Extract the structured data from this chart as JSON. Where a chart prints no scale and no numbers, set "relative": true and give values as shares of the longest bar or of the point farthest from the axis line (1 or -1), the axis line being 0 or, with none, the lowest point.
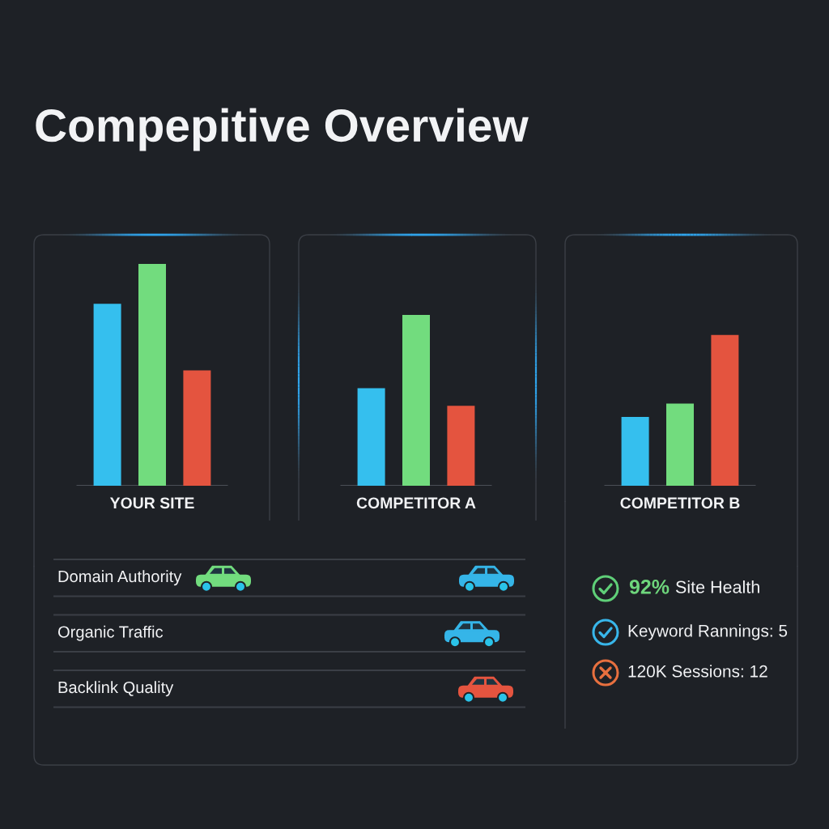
{
  "chart_data": [
    {
      "type": "bar",
      "title": "Compepitive Overview",
      "categories": [
        "YOUR SITE",
        "COMPETITOR A",
        "COMPETITOR B"
      ],
      "series": [
        {
          "color": "#35bfee",
          "values": [
            0.82,
            0.44,
            0.31
          ]
        },
        {
          "color": "#72dc7e",
          "values": [
            1,
            0.77,
            0.37
          ]
        },
        {
          "color": "#e4543f",
          "values": [
            0.52,
            0.36,
            0.68
          ]
        }
      ],
      "relative": true
    },
    {
      "type": "other",
      "categories": [
        "Domain Authority",
        "Organic Traffic",
        "Backlink Quality"
      ]
    },
    {
      "type": "other",
      "annotations": [
        "92% Site Health",
        "Keyword Rannings: 5",
        "120K Sessions: 12"
      ]
    }
  ]
}
